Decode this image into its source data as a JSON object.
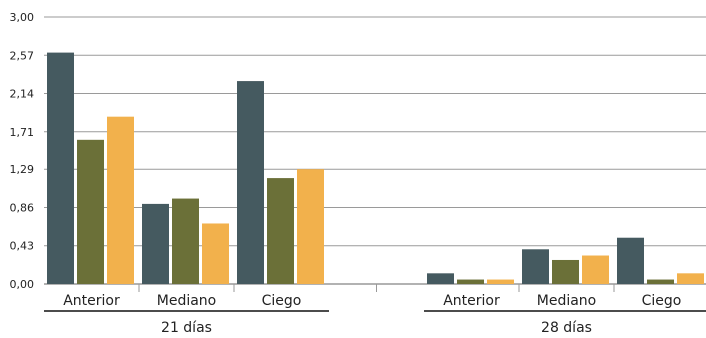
{
  "chart_data": {
    "type": "bar",
    "title": "",
    "xlabel": "",
    "ylabel": "",
    "ylim": [
      0,
      3.0
    ],
    "yticks": [
      "0,00",
      "0,43",
      "0,86",
      "1,29",
      "1,71",
      "2,14",
      "2,57",
      "3,00"
    ],
    "ytick_values": [
      0,
      0.43,
      0.86,
      1.29,
      1.71,
      2.14,
      2.57,
      3.0
    ],
    "grid": true,
    "legend": "none",
    "groups": [
      {
        "label": "21 días",
        "categories": [
          {
            "label": "Anterior",
            "values": [
              2.6,
              1.62,
              1.88
            ]
          },
          {
            "label": "Mediano",
            "values": [
              0.9,
              0.96,
              0.68
            ]
          },
          {
            "label": "Ciego",
            "values": [
              2.28,
              1.19,
              1.29
            ]
          }
        ]
      },
      {
        "label": "28 días",
        "categories": [
          {
            "label": "Anterior",
            "values": [
              0.12,
              0.05,
              0.05
            ]
          },
          {
            "label": "Mediano",
            "values": [
              0.39,
              0.27,
              0.32
            ]
          },
          {
            "label": "Ciego",
            "values": [
              0.52,
              0.05,
              0.12
            ]
          }
        ]
      }
    ],
    "series_colors": [
      "#455a60",
      "#6b7038",
      "#f2b14c"
    ]
  }
}
